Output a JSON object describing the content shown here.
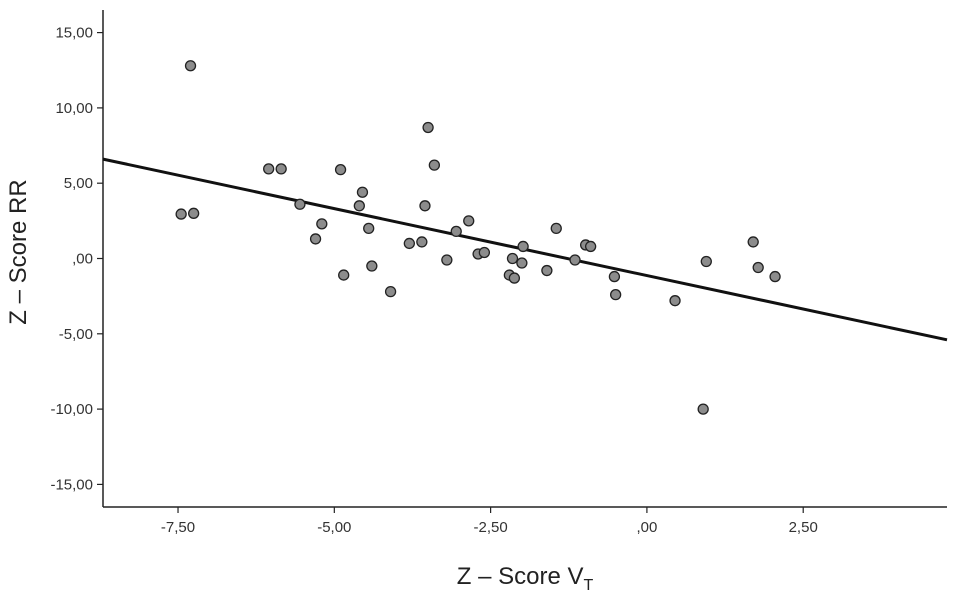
{
  "chart_data": {
    "type": "scatter",
    "title": "",
    "xlabel": "Z – Score V",
    "xlabel_subscript": "T",
    "ylabel": "Z – Score RR",
    "xlim": [
      -8.7,
      4.8
    ],
    "ylim": [
      -16.5,
      16.5
    ],
    "x_ticks": [
      -7.5,
      -5.0,
      -2.5,
      0.0,
      2.5
    ],
    "x_tick_labels": [
      "-7,50",
      "-5,00",
      "-2,50",
      ",00",
      "2,50"
    ],
    "y_ticks": [
      15,
      10,
      5,
      0,
      -5,
      -10,
      -15
    ],
    "y_tick_labels": [
      "15,00",
      "10,00",
      "5,00",
      ",00",
      "-5,00",
      "-10,00",
      "-15,00"
    ],
    "grid": false,
    "marker_color": "#8c8c8c",
    "marker_edge_color": "#222222",
    "line_color": "#111111",
    "fit_line": {
      "x": [
        -8.7,
        4.8
      ],
      "y": [
        6.6,
        -5.4
      ]
    },
    "points": [
      {
        "x": -7.3,
        "y": 12.8
      },
      {
        "x": -7.45,
        "y": 2.95
      },
      {
        "x": -7.25,
        "y": 3.0
      },
      {
        "x": -6.05,
        "y": 5.95
      },
      {
        "x": -5.85,
        "y": 5.95
      },
      {
        "x": -5.55,
        "y": 3.6
      },
      {
        "x": -5.3,
        "y": 1.3
      },
      {
        "x": -5.2,
        "y": 2.3
      },
      {
        "x": -4.9,
        "y": 5.9
      },
      {
        "x": -4.85,
        "y": -1.1
      },
      {
        "x": -4.6,
        "y": 3.5
      },
      {
        "x": -4.55,
        "y": 4.4
      },
      {
        "x": -4.45,
        "y": 2.0
      },
      {
        "x": -4.4,
        "y": -0.5
      },
      {
        "x": -4.1,
        "y": -2.2
      },
      {
        "x": -3.8,
        "y": 1.0
      },
      {
        "x": -3.6,
        "y": 1.1
      },
      {
        "x": -3.55,
        "y": 3.5
      },
      {
        "x": -3.5,
        "y": 8.7
      },
      {
        "x": -3.4,
        "y": 6.2
      },
      {
        "x": -3.2,
        "y": -0.1
      },
      {
        "x": -3.05,
        "y": 1.8
      },
      {
        "x": -2.85,
        "y": 2.5
      },
      {
        "x": -2.7,
        "y": 0.3
      },
      {
        "x": -2.6,
        "y": 0.4
      },
      {
        "x": -2.2,
        "y": -1.1
      },
      {
        "x": -2.15,
        "y": 0.0
      },
      {
        "x": -2.12,
        "y": -1.3
      },
      {
        "x": -2.0,
        "y": -0.3
      },
      {
        "x": -1.98,
        "y": 0.8
      },
      {
        "x": -1.6,
        "y": -0.8
      },
      {
        "x": -1.45,
        "y": 2.0
      },
      {
        "x": -1.15,
        "y": -0.1
      },
      {
        "x": -0.98,
        "y": 0.9
      },
      {
        "x": -0.9,
        "y": 0.8
      },
      {
        "x": -0.52,
        "y": -1.2
      },
      {
        "x": -0.5,
        "y": -2.4
      },
      {
        "x": 0.45,
        "y": -2.8
      },
      {
        "x": 0.9,
        "y": -10.0
      },
      {
        "x": 0.95,
        "y": -0.2
      },
      {
        "x": 1.7,
        "y": 1.1
      },
      {
        "x": 1.78,
        "y": -0.6
      },
      {
        "x": 2.05,
        "y": -1.2
      }
    ]
  }
}
